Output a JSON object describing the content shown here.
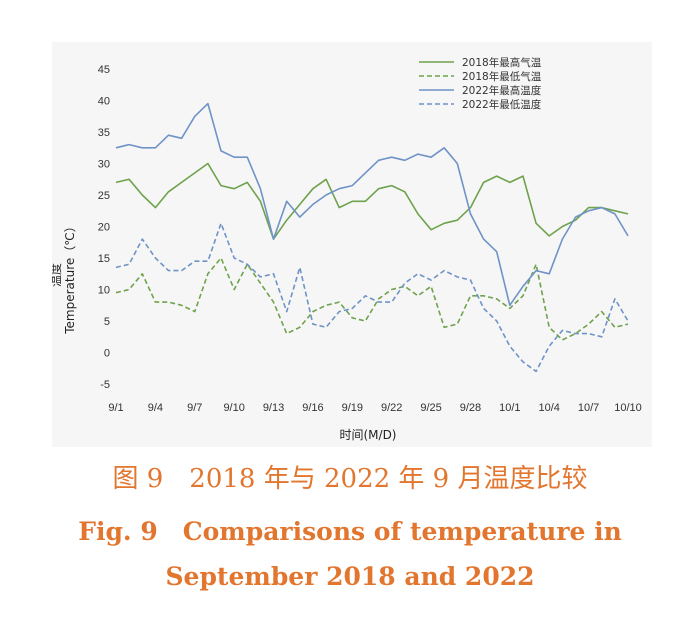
{
  "chart_data": {
    "type": "line",
    "xlabel": "时间(M/D)",
    "ylabel_cn": "温度",
    "ylabel_en": "Temperature（℃）",
    "ylim": [
      -5,
      45
    ],
    "yticks": [
      -5,
      0,
      5,
      10,
      15,
      20,
      25,
      30,
      35,
      40,
      45
    ],
    "x_dates": [
      "9/1",
      "9/2",
      "9/3",
      "9/4",
      "9/5",
      "9/6",
      "9/7",
      "9/8",
      "9/9",
      "9/10",
      "9/11",
      "9/12",
      "9/13",
      "9/14",
      "9/15",
      "9/16",
      "9/17",
      "9/18",
      "9/19",
      "9/20",
      "9/21",
      "9/22",
      "9/23",
      "9/24",
      "9/25",
      "9/26",
      "9/27",
      "9/28",
      "9/29",
      "9/30",
      "10/1",
      "10/2",
      "10/3",
      "10/4",
      "10/5",
      "10/6",
      "10/7",
      "10/8",
      "10/9",
      "10/10"
    ],
    "xtick_labels": [
      "9/1",
      "9/4",
      "9/7",
      "9/10",
      "9/13",
      "9/16",
      "9/19",
      "9/22",
      "9/25",
      "9/28",
      "10/1",
      "10/4",
      "10/7",
      "10/10"
    ],
    "legend_position": "top-right",
    "series": [
      {
        "name": "2018年最高气温",
        "color": "#6fa24c",
        "dash": "solid",
        "values": [
          27,
          27.5,
          25,
          23,
          25.5,
          27,
          28.5,
          30,
          26.5,
          26,
          27,
          24,
          18,
          21,
          23.5,
          26,
          27.5,
          23,
          24,
          24,
          26,
          26.5,
          25.5,
          22,
          19.5,
          20.5,
          21,
          23,
          27,
          28,
          27,
          28,
          20.5,
          18.5,
          20,
          21,
          23,
          23,
          22.5,
          22
        ]
      },
      {
        "name": "2018年最低气温",
        "color": "#6fa24c",
        "dash": "dashed",
        "values": [
          9.5,
          10,
          12.5,
          8,
          8,
          7.5,
          6.5,
          12.5,
          15,
          10,
          14,
          11,
          8,
          3,
          4,
          6.5,
          7.5,
          8,
          5.5,
          5,
          8.5,
          10,
          10.5,
          9,
          10.5,
          4,
          4.5,
          9,
          9,
          8.5,
          7,
          9,
          14,
          4,
          2,
          3,
          4.5,
          6.5,
          4,
          4.5
        ]
      },
      {
        "name": "2022年最高温度",
        "color": "#6f93c6",
        "dash": "solid",
        "values": [
          32.5,
          33,
          32.5,
          32.5,
          34.5,
          34,
          37.5,
          39.5,
          32,
          31,
          31,
          26,
          18,
          24,
          21.5,
          23.5,
          25,
          26,
          26.5,
          28.5,
          30.5,
          31,
          30.5,
          31.5,
          31,
          32.5,
          30,
          22,
          18,
          16,
          7.5,
          10.5,
          13,
          12.5,
          18,
          21.5,
          22.5,
          23,
          22,
          18.5
        ]
      },
      {
        "name": "2022年最低温度",
        "color": "#6f93c6",
        "dash": "dashed",
        "values": [
          13.5,
          14,
          18,
          15,
          13,
          13,
          14.5,
          14.5,
          20.5,
          15,
          14,
          12,
          12.5,
          6.5,
          13.5,
          4.5,
          4,
          6.5,
          7,
          9,
          8,
          8,
          11,
          12.5,
          11.5,
          13,
          12,
          11.5,
          7,
          5,
          1,
          -1.5,
          -3,
          1,
          3.5,
          3,
          3,
          2.5,
          8.5,
          5
        ]
      }
    ]
  },
  "caption": {
    "cn": "图 9　2018 年与 2022 年 9 月温度比较",
    "en_line1": "Fig. 9　Comparisons of temperature in",
    "en_line2": "September 2018 and 2022"
  }
}
